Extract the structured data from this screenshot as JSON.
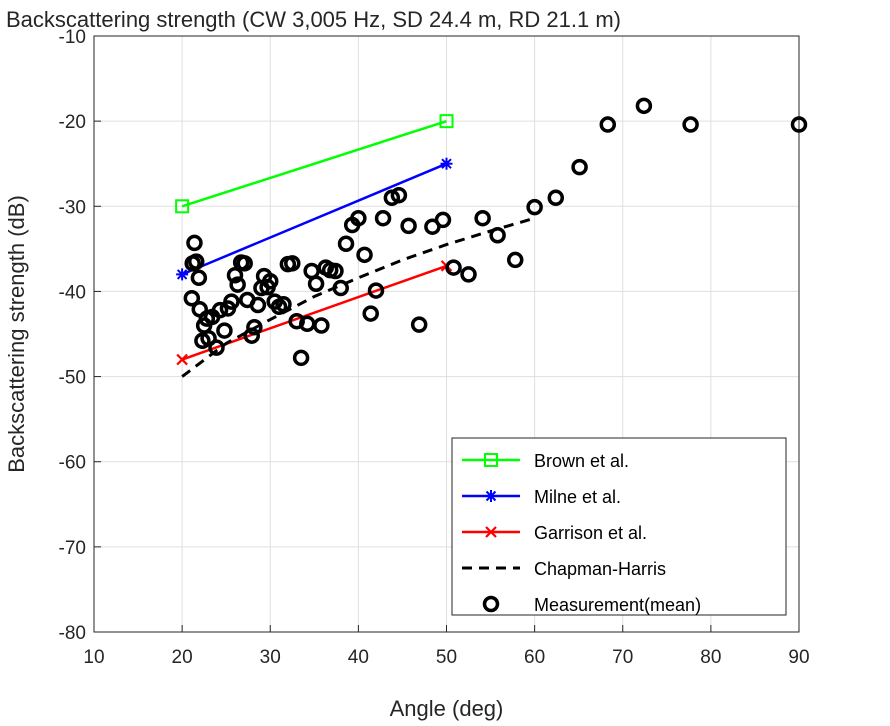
{
  "chart_data": {
    "type": "line",
    "title": "Backscattering strength (CW 3,005 Hz, SD 24.4 m, RD 21.1 m)",
    "xlabel": "Angle (deg)",
    "ylabel": "Backscattering strength (dB)",
    "xlim": [
      10,
      90
    ],
    "ylim": [
      -80,
      -10
    ],
    "xticks": [
      10,
      20,
      30,
      40,
      50,
      60,
      70,
      80,
      90
    ],
    "yticks": [
      -80,
      -70,
      -60,
      -50,
      -40,
      -30,
      -20,
      -10
    ],
    "grid": true,
    "legend_position": "bottom-right",
    "series": [
      {
        "name": "Brown et al.",
        "style": "line",
        "marker": "square",
        "color": "#00ff00",
        "x": [
          20,
          50
        ],
        "y": [
          -30,
          -20
        ]
      },
      {
        "name": "Milne et al.",
        "style": "line",
        "marker": "asterisk",
        "color": "#0000ff",
        "x": [
          20,
          50
        ],
        "y": [
          -38,
          -25
        ]
      },
      {
        "name": "Garrison et al.",
        "style": "line",
        "marker": "x",
        "color": "#ff0000",
        "x": [
          20,
          50
        ],
        "y": [
          -48,
          -37
        ]
      },
      {
        "name": "Chapman-Harris",
        "style": "dashed",
        "marker": "none",
        "color": "#000000",
        "x": [
          20,
          25,
          30,
          35,
          40,
          45,
          50,
          55,
          60
        ],
        "y": [
          -50,
          -46.1,
          -43.3,
          -40.6,
          -38.4,
          -36.3,
          -34.5,
          -32.9,
          -31.4
        ]
      },
      {
        "name": "Measurement(mean)",
        "style": "markers",
        "marker": "circle",
        "color": "#000000",
        "x": [
          21.4,
          21.6,
          21.2,
          21.9,
          22.0,
          21.1,
          22.3,
          22.5,
          22.8,
          23.0,
          23.4,
          23.9,
          24.3,
          24.8,
          25.2,
          25.6,
          26.0,
          26.3,
          26.7,
          27.1,
          27.4,
          27.9,
          28.2,
          28.6,
          29.0,
          29.3,
          29.7,
          30.0,
          30.5,
          31.0,
          31.5,
          32.0,
          32.5,
          33.0,
          33.5,
          34.2,
          34.7,
          35.2,
          35.8,
          36.3,
          36.8,
          37.4,
          38.0,
          38.6,
          39.3,
          40.0,
          40.7,
          41.4,
          42.0,
          42.8,
          43.8,
          44.6,
          45.7,
          46.9,
          48.4,
          49.6,
          50.8,
          52.5,
          54.1,
          55.8,
          57.8,
          60.0,
          62.4,
          65.1,
          68.3,
          72.4,
          77.7,
          90.0
        ],
        "y": [
          -34.3,
          -36.5,
          -36.7,
          -38.4,
          -42.1,
          -40.8,
          -45.8,
          -44.0,
          -43.2,
          -45.5,
          -43.0,
          -46.6,
          -42.2,
          -44.6,
          -42.0,
          -41.2,
          -38.1,
          -39.2,
          -36.6,
          -36.7,
          -41.0,
          -45.2,
          -44.2,
          -41.6,
          -39.6,
          -38.2,
          -39.5,
          -38.8,
          -41.2,
          -41.8,
          -41.5,
          -36.8,
          -36.7,
          -43.5,
          -47.8,
          -43.8,
          -37.6,
          -39.1,
          -44.0,
          -37.2,
          -37.5,
          -37.6,
          -39.6,
          -34.4,
          -32.2,
          -31.4,
          -35.7,
          -42.6,
          -39.9,
          -31.4,
          -29.0,
          -28.7,
          -32.3,
          -43.9,
          -32.4,
          -31.6,
          -37.2,
          -38.0,
          -31.4,
          -33.4,
          -36.3,
          -30.1,
          -29.0,
          -25.4,
          -20.4,
          -18.2,
          -20.4,
          -20.4
        ]
      }
    ]
  }
}
